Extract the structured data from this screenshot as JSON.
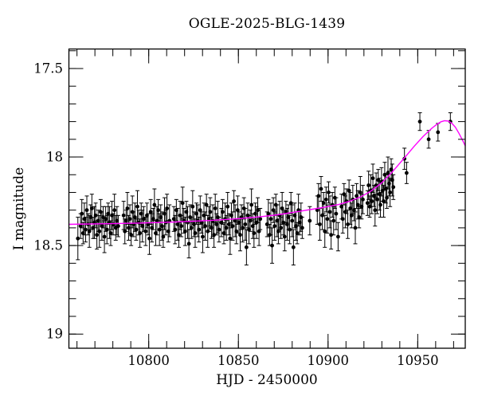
{
  "colors": {
    "background": "#ffffff",
    "axis": "#000000",
    "data_points": "#000000",
    "model_curve": "#ff00ff"
  },
  "chart_data": {
    "type": "scatter",
    "title": "OGLE-2025-BLG-1439",
    "xlabel": "HJD - 2450000",
    "ylabel": "I magnitude",
    "x_range": [
      10755.5,
      10976.5
    ],
    "y_range": [
      19.08,
      17.39
    ],
    "y_inverted": true,
    "grid": false,
    "baseline_mag": 18.37,
    "peak": {
      "hjd": 10965,
      "mag": 17.8
    },
    "x_ticks": {
      "major": [
        {
          "v": 10800,
          "label": "10800"
        },
        {
          "v": 10850,
          "label": "10850"
        },
        {
          "v": 10900,
          "label": "10900"
        },
        {
          "v": 10950,
          "label": "10950"
        }
      ],
      "minor_start": 10760,
      "minor_end": 10970,
      "minor_step": 10
    },
    "y_ticks": {
      "major": [
        {
          "v": 17.5,
          "label": "17.5"
        },
        {
          "v": 18,
          "label": "18"
        },
        {
          "v": 18.5,
          "label": "18.5"
        },
        {
          "v": 19,
          "label": "19"
        }
      ],
      "minor_start": 17.4,
      "minor_end": 19.0,
      "minor_step": 0.1
    },
    "points": [
      [
        10760.5,
        18.46,
        0.12
      ],
      [
        10762.0,
        18.39,
        0.07
      ],
      [
        10762.7,
        18.32,
        0.08
      ],
      [
        10763.4,
        18.43,
        0.06
      ],
      [
        10764.1,
        18.35,
        0.09
      ],
      [
        10764.8,
        18.41,
        0.07
      ],
      [
        10765.5,
        18.3,
        0.08
      ],
      [
        10766.2,
        18.38,
        0.06
      ],
      [
        10766.9,
        18.42,
        0.09
      ],
      [
        10767.6,
        18.34,
        0.07
      ],
      [
        10768.3,
        18.29,
        0.08
      ],
      [
        10769.0,
        18.4,
        0.06
      ],
      [
        10769.7,
        18.37,
        0.09
      ],
      [
        10770.4,
        18.33,
        0.07
      ],
      [
        10771.1,
        18.44,
        0.08
      ],
      [
        10771.8,
        18.36,
        0.06
      ],
      [
        10772.5,
        18.42,
        0.09
      ],
      [
        10773.2,
        18.31,
        0.07
      ],
      [
        10773.9,
        18.39,
        0.08
      ],
      [
        10774.6,
        18.34,
        0.06
      ],
      [
        10775.3,
        18.45,
        0.09
      ],
      [
        10776.0,
        18.35,
        0.07
      ],
      [
        10776.7,
        18.41,
        0.08
      ],
      [
        10777.4,
        18.32,
        0.06
      ],
      [
        10778.1,
        18.37,
        0.09
      ],
      [
        10778.8,
        18.43,
        0.07
      ],
      [
        10779.5,
        18.33,
        0.08
      ],
      [
        10780.2,
        18.38,
        0.06
      ],
      [
        10780.9,
        18.3,
        0.09
      ],
      [
        10781.6,
        18.4,
        0.07
      ],
      [
        10782.3,
        18.36,
        0.08
      ],
      [
        10783.0,
        18.39,
        0.06
      ],
      [
        10786.0,
        18.33,
        0.08
      ],
      [
        10786.7,
        18.42,
        0.07
      ],
      [
        10787.4,
        18.36,
        0.06
      ],
      [
        10788.1,
        18.29,
        0.09
      ],
      [
        10788.8,
        18.4,
        0.07
      ],
      [
        10789.5,
        18.35,
        0.08
      ],
      [
        10790.2,
        18.44,
        0.06
      ],
      [
        10790.9,
        18.31,
        0.09
      ],
      [
        10791.6,
        18.38,
        0.07
      ],
      [
        10792.3,
        18.34,
        0.08
      ],
      [
        10793.0,
        18.41,
        0.06
      ],
      [
        10793.7,
        18.28,
        0.09
      ],
      [
        10794.4,
        18.37,
        0.07
      ],
      [
        10795.1,
        18.43,
        0.08
      ],
      [
        10795.8,
        18.32,
        0.06
      ],
      [
        10796.5,
        18.39,
        0.09
      ],
      [
        10797.2,
        18.35,
        0.07
      ],
      [
        10798.3,
        18.42,
        0.08
      ],
      [
        10799.0,
        18.33,
        0.07
      ],
      [
        10799.7,
        18.38,
        0.06
      ],
      [
        10800.4,
        18.46,
        0.09
      ],
      [
        10801.1,
        18.31,
        0.07
      ],
      [
        10801.8,
        18.4,
        0.08
      ],
      [
        10802.5,
        18.35,
        0.06
      ],
      [
        10803.2,
        18.27,
        0.09
      ],
      [
        10803.9,
        18.43,
        0.07
      ],
      [
        10804.6,
        18.36,
        0.08
      ],
      [
        10805.3,
        18.3,
        0.06
      ],
      [
        10806.0,
        18.41,
        0.09
      ],
      [
        10806.7,
        18.34,
        0.07
      ],
      [
        10807.4,
        18.39,
        0.08
      ],
      [
        10808.1,
        18.45,
        0.06
      ],
      [
        10808.8,
        18.32,
        0.09
      ],
      [
        10809.5,
        18.37,
        0.07
      ],
      [
        10810.2,
        18.29,
        0.08
      ],
      [
        10810.9,
        18.42,
        0.06
      ],
      [
        10811.6,
        18.36,
        0.09
      ],
      [
        10814.0,
        18.35,
        0.07
      ],
      [
        10814.7,
        18.41,
        0.08
      ],
      [
        10815.4,
        18.3,
        0.06
      ],
      [
        10816.1,
        18.38,
        0.09
      ],
      [
        10816.8,
        18.44,
        0.07
      ],
      [
        10817.5,
        18.33,
        0.08
      ],
      [
        10818.2,
        18.39,
        0.06
      ],
      [
        10818.9,
        18.26,
        0.09
      ],
      [
        10819.6,
        18.36,
        0.07
      ],
      [
        10820.3,
        18.42,
        0.08
      ],
      [
        10821.0,
        18.31,
        0.06
      ],
      [
        10821.7,
        18.37,
        0.09
      ],
      [
        10822.4,
        18.49,
        0.08
      ],
      [
        10823.1,
        18.34,
        0.07
      ],
      [
        10823.8,
        18.4,
        0.06
      ],
      [
        10824.5,
        18.28,
        0.09
      ],
      [
        10825.2,
        18.38,
        0.07
      ],
      [
        10825.9,
        18.43,
        0.08
      ],
      [
        10826.6,
        18.32,
        0.06
      ],
      [
        10827.3,
        18.36,
        0.09
      ],
      [
        10828.0,
        18.41,
        0.07
      ],
      [
        10828.7,
        18.3,
        0.08
      ],
      [
        10829.4,
        18.37,
        0.06
      ],
      [
        10830.1,
        18.45,
        0.09
      ],
      [
        10830.8,
        18.33,
        0.07
      ],
      [
        10831.5,
        18.39,
        0.08
      ],
      [
        10832.2,
        18.27,
        0.06
      ],
      [
        10832.9,
        18.42,
        0.09
      ],
      [
        10833.6,
        18.35,
        0.07
      ],
      [
        10834.3,
        18.31,
        0.08
      ],
      [
        10835.0,
        18.4,
        0.06
      ],
      [
        10835.7,
        18.36,
        0.09
      ],
      [
        10836.4,
        18.44,
        0.07
      ],
      [
        10837.1,
        18.29,
        0.08
      ],
      [
        10837.8,
        18.38,
        0.06
      ],
      [
        10838.5,
        18.34,
        0.09
      ],
      [
        10839.2,
        18.41,
        0.07
      ],
      [
        10840.5,
        18.37,
        0.08
      ],
      [
        10841.2,
        18.31,
        0.07
      ],
      [
        10841.9,
        18.43,
        0.06
      ],
      [
        10842.6,
        18.35,
        0.09
      ],
      [
        10843.3,
        18.4,
        0.07
      ],
      [
        10844.0,
        18.28,
        0.08
      ],
      [
        10844.7,
        18.38,
        0.06
      ],
      [
        10845.4,
        18.46,
        0.09
      ],
      [
        10846.1,
        18.33,
        0.07
      ],
      [
        10846.8,
        18.39,
        0.08
      ],
      [
        10847.5,
        18.25,
        0.06
      ],
      [
        10848.2,
        18.36,
        0.09
      ],
      [
        10848.9,
        18.42,
        0.07
      ],
      [
        10849.6,
        18.3,
        0.08
      ],
      [
        10850.3,
        18.37,
        0.06
      ],
      [
        10851.0,
        18.44,
        0.09
      ],
      [
        10851.7,
        18.34,
        0.07
      ],
      [
        10852.4,
        18.4,
        0.08
      ],
      [
        10853.1,
        18.29,
        0.06
      ],
      [
        10853.8,
        18.38,
        0.09
      ],
      [
        10854.5,
        18.51,
        0.1
      ],
      [
        10855.2,
        18.33,
        0.07
      ],
      [
        10855.9,
        18.41,
        0.08
      ],
      [
        10856.6,
        18.36,
        0.06
      ],
      [
        10857.3,
        18.27,
        0.09
      ],
      [
        10858.0,
        18.39,
        0.07
      ],
      [
        10858.7,
        18.43,
        0.08
      ],
      [
        10859.4,
        18.32,
        0.06
      ],
      [
        10860.1,
        18.37,
        0.09
      ],
      [
        10860.8,
        18.3,
        0.07
      ],
      [
        10861.5,
        18.42,
        0.08
      ],
      [
        10862.2,
        18.35,
        0.06
      ],
      [
        10866.0,
        18.38,
        0.07
      ],
      [
        10866.7,
        18.32,
        0.08
      ],
      [
        10867.4,
        18.44,
        0.06
      ],
      [
        10868.1,
        18.35,
        0.09
      ],
      [
        10868.8,
        18.5,
        0.1
      ],
      [
        10869.5,
        18.3,
        0.07
      ],
      [
        10870.2,
        18.39,
        0.08
      ],
      [
        10870.9,
        18.27,
        0.06
      ],
      [
        10871.6,
        18.36,
        0.09
      ],
      [
        10872.3,
        18.42,
        0.07
      ],
      [
        10873.0,
        18.33,
        0.08
      ],
      [
        10873.7,
        18.4,
        0.06
      ],
      [
        10874.4,
        18.29,
        0.09
      ],
      [
        10875.1,
        18.37,
        0.07
      ],
      [
        10875.8,
        18.45,
        0.08
      ],
      [
        10876.5,
        18.31,
        0.06
      ],
      [
        10877.2,
        18.38,
        0.09
      ],
      [
        10877.9,
        18.34,
        0.07
      ],
      [
        10878.6,
        18.41,
        0.08
      ],
      [
        10879.3,
        18.26,
        0.06
      ],
      [
        10880.0,
        18.36,
        0.09
      ],
      [
        10880.7,
        18.51,
        0.1
      ],
      [
        10881.4,
        18.33,
        0.07
      ],
      [
        10882.1,
        18.39,
        0.08
      ],
      [
        10882.8,
        18.43,
        0.06
      ],
      [
        10883.5,
        18.3,
        0.09
      ],
      [
        10884.2,
        18.37,
        0.07
      ],
      [
        10884.9,
        18.34,
        0.08
      ],
      [
        10885.6,
        18.4,
        0.06
      ],
      [
        10889.8,
        18.36,
        0.08
      ],
      [
        10894.0,
        18.3,
        0.08
      ],
      [
        10894.7,
        18.22,
        0.07
      ],
      [
        10895.4,
        18.38,
        0.09
      ],
      [
        10896.1,
        18.18,
        0.07
      ],
      [
        10896.8,
        18.33,
        0.08
      ],
      [
        10897.5,
        18.26,
        0.06
      ],
      [
        10898.2,
        18.42,
        0.09
      ],
      [
        10898.9,
        18.24,
        0.07
      ],
      [
        10899.6,
        18.35,
        0.08
      ],
      [
        10900.3,
        18.2,
        0.06
      ],
      [
        10901.0,
        18.31,
        0.09
      ],
      [
        10901.7,
        18.44,
        0.08
      ],
      [
        10902.4,
        18.27,
        0.07
      ],
      [
        10903.1,
        18.36,
        0.08
      ],
      [
        10903.8,
        18.23,
        0.06
      ],
      [
        10904.5,
        18.32,
        0.09
      ],
      [
        10905.6,
        18.45,
        0.08
      ],
      [
        10907.5,
        18.28,
        0.07
      ],
      [
        10908.2,
        18.35,
        0.08
      ],
      [
        10908.9,
        18.21,
        0.06
      ],
      [
        10909.6,
        18.31,
        0.09
      ],
      [
        10910.3,
        18.25,
        0.07
      ],
      [
        10911.0,
        18.38,
        0.08
      ],
      [
        10911.7,
        18.19,
        0.06
      ],
      [
        10912.4,
        18.29,
        0.09
      ],
      [
        10913.1,
        18.33,
        0.07
      ],
      [
        10913.8,
        18.24,
        0.08
      ],
      [
        10914.5,
        18.3,
        0.06
      ],
      [
        10915.2,
        18.4,
        0.09
      ],
      [
        10915.9,
        18.22,
        0.07
      ],
      [
        10916.6,
        18.27,
        0.08
      ],
      [
        10917.3,
        18.34,
        0.06
      ],
      [
        10918.0,
        18.2,
        0.09
      ],
      [
        10918.7,
        18.28,
        0.07
      ],
      [
        10919.4,
        18.24,
        0.08
      ],
      [
        10922.0,
        18.26,
        0.07
      ],
      [
        10922.6,
        18.16,
        0.08
      ],
      [
        10923.2,
        18.28,
        0.06
      ],
      [
        10923.8,
        18.19,
        0.09
      ],
      [
        10924.4,
        18.25,
        0.07
      ],
      [
        10925.0,
        18.12,
        0.08
      ],
      [
        10925.6,
        18.22,
        0.06
      ],
      [
        10926.2,
        18.3,
        0.09
      ],
      [
        10926.8,
        18.16,
        0.07
      ],
      [
        10927.4,
        18.24,
        0.08
      ],
      [
        10928.0,
        18.13,
        0.06
      ],
      [
        10928.6,
        18.21,
        0.09
      ],
      [
        10929.2,
        18.27,
        0.07
      ],
      [
        10929.8,
        18.14,
        0.08
      ],
      [
        10930.4,
        18.19,
        0.06
      ],
      [
        10931.0,
        18.25,
        0.09
      ],
      [
        10931.6,
        18.1,
        0.07
      ],
      [
        10932.2,
        18.18,
        0.08
      ],
      [
        10932.8,
        18.23,
        0.06
      ],
      [
        10933.4,
        18.09,
        0.09
      ],
      [
        10934.0,
        18.15,
        0.07
      ],
      [
        10934.6,
        18.2,
        0.08
      ],
      [
        10935.2,
        18.07,
        0.06
      ],
      [
        10935.8,
        18.13,
        0.09
      ],
      [
        10936.4,
        18.17,
        0.07
      ],
      [
        10942.6,
        18.01,
        0.06
      ],
      [
        10943.8,
        18.09,
        0.06
      ],
      [
        10951.2,
        17.8,
        0.05
      ],
      [
        10956.1,
        17.9,
        0.05
      ],
      [
        10961.3,
        17.86,
        0.05
      ],
      [
        10968.2,
        17.8,
        0.05
      ]
    ],
    "model_curve": [
      [
        10755.5,
        18.38
      ],
      [
        10775,
        18.377
      ],
      [
        10795,
        18.373
      ],
      [
        10815,
        18.367
      ],
      [
        10835,
        18.358
      ],
      [
        10850,
        18.348
      ],
      [
        10862,
        18.338
      ],
      [
        10872,
        18.326
      ],
      [
        10882,
        18.31
      ],
      [
        10890,
        18.297
      ],
      [
        10898,
        18.284
      ],
      [
        10906,
        18.268
      ],
      [
        10912,
        18.25
      ],
      [
        10918,
        18.226
      ],
      [
        10924,
        18.192
      ],
      [
        10930,
        18.145
      ],
      [
        10936,
        18.082
      ],
      [
        10942,
        18.012
      ],
      [
        10948,
        17.94
      ],
      [
        10953,
        17.884
      ],
      [
        10958,
        17.836
      ],
      [
        10961,
        17.813
      ],
      [
        10963,
        17.801
      ],
      [
        10965,
        17.795
      ],
      [
        10967,
        17.797
      ],
      [
        10969,
        17.809
      ],
      [
        10971,
        17.832
      ],
      [
        10973,
        17.866
      ],
      [
        10975,
        17.905
      ],
      [
        10976.5,
        17.937
      ]
    ]
  }
}
